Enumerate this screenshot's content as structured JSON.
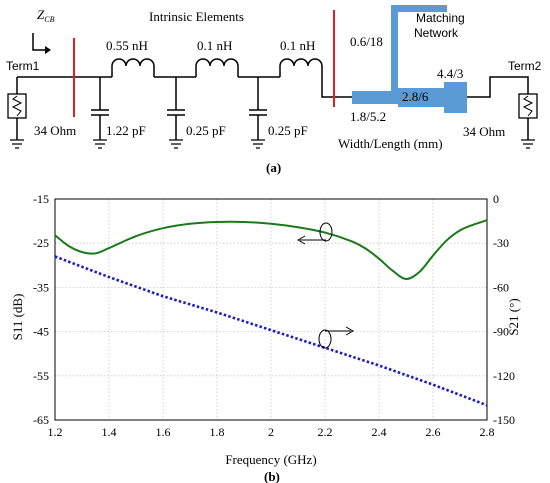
{
  "circuit": {
    "zcb_label": "Z",
    "zcb_sub": "CB",
    "intrinsic_label": "Intrinsic Elements",
    "matching_label_line1": "Matching",
    "matching_label_line2": "Network",
    "term1": "Term1",
    "term2": "Term2",
    "r1": "34 Ohm",
    "r2": "34 Ohm",
    "inductors": [
      "0.55 nH",
      "0.1 nH",
      "0.1 nH"
    ],
    "capacitors": [
      "1.22 pF",
      "0.25 pF",
      "0.25 pF"
    ],
    "tl": [
      "0.6/18",
      "1.8/5.2",
      "2.8/6",
      "4.4/3"
    ],
    "width_length": "Width/Length (mm)",
    "caption": "(a)",
    "colors": {
      "red_marker": "#e02020",
      "line_blue": "#5b9bd5"
    }
  },
  "chart_data": {
    "type": "line",
    "xlabel": "Frequency (GHz)",
    "ylabel_left": "S11 (dB)",
    "ylabel_right": "S21 (°)",
    "xlim": [
      1.2,
      2.8
    ],
    "ylim_left": [
      -65,
      -15
    ],
    "ylim_right": [
      -150,
      0
    ],
    "x_ticks": [
      "1.2",
      "1.4",
      "1.6",
      "1.8",
      "2",
      "2.2",
      "2.4",
      "2.6",
      "2.8"
    ],
    "y_left_ticks": [
      "-15",
      "-25",
      "-35",
      "-45",
      "-55",
      "-65"
    ],
    "y_right_ticks": [
      "0",
      "-30",
      "-60",
      "-90",
      "-120",
      "-150"
    ],
    "grid": true,
    "caption": "(b)",
    "series": [
      {
        "axis": "left",
        "color": "#1a7a1a",
        "style": "solid",
        "x": [
          1.2,
          1.25,
          1.3,
          1.35,
          1.4,
          1.5,
          1.6,
          1.7,
          1.8,
          1.9,
          2.0,
          2.1,
          2.2,
          2.3,
          2.35,
          2.4,
          2.45,
          2.5,
          2.55,
          2.6,
          2.65,
          2.7,
          2.75,
          2.8
        ],
        "y": [
          -23.2,
          -25.6,
          -27.0,
          -27.3,
          -26.1,
          -23.4,
          -21.6,
          -20.6,
          -20.2,
          -20.2,
          -20.6,
          -21.4,
          -22.6,
          -24.6,
          -26.2,
          -28.5,
          -31.2,
          -33.1,
          -31.5,
          -27.8,
          -24.4,
          -22.1,
          -20.8,
          -19.8
        ]
      },
      {
        "axis": "right",
        "color": "#1a1acc",
        "style": "dotted",
        "x": [
          1.2,
          1.4,
          1.6,
          1.8,
          2.0,
          2.2,
          2.4,
          2.6,
          2.8
        ],
        "y": [
          -39,
          -53,
          -66,
          -77,
          -89,
          -101,
          -113,
          -126,
          -140
        ]
      }
    ]
  }
}
